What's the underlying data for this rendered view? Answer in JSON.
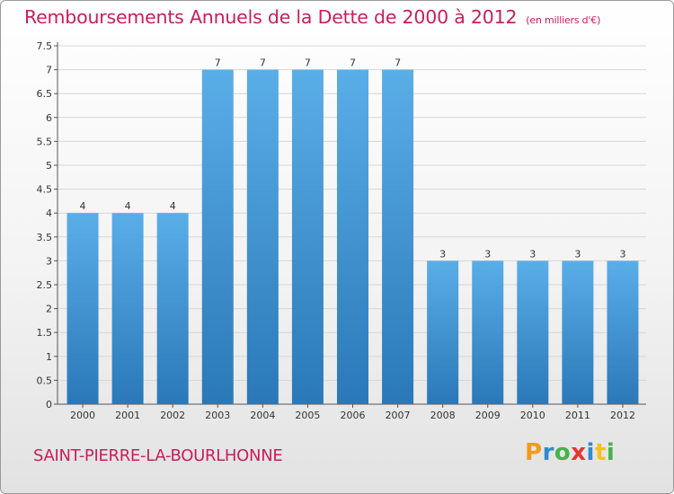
{
  "chart_data": {
    "type": "bar",
    "title": "Remboursements Annuels de la Dette de 2000 à 2012",
    "subtitle": "(en milliers d'€)",
    "categories": [
      "2000",
      "2001",
      "2002",
      "2003",
      "2004",
      "2005",
      "2006",
      "2007",
      "2008",
      "2009",
      "2010",
      "2011",
      "2012"
    ],
    "values": [
      4,
      4,
      4,
      7,
      7,
      7,
      7,
      7,
      3,
      3,
      3,
      3,
      3
    ],
    "ylim": [
      0,
      7.5
    ],
    "yticks": [
      "0",
      "0.5",
      "1",
      "1.5",
      "2",
      "2.5",
      "3",
      "3.5",
      "4",
      "4.5",
      "5",
      "5.5",
      "6",
      "6.5",
      "7",
      "7.5"
    ],
    "grid": true,
    "bar_color_top": "#5aaee8",
    "bar_color_bottom": "#2a78b8"
  },
  "commune": "SAINT-PIERRE-LA-BOURLHONNE",
  "logo": {
    "letters": [
      "P",
      "r",
      "o",
      "x",
      "i",
      "t",
      "i"
    ]
  }
}
